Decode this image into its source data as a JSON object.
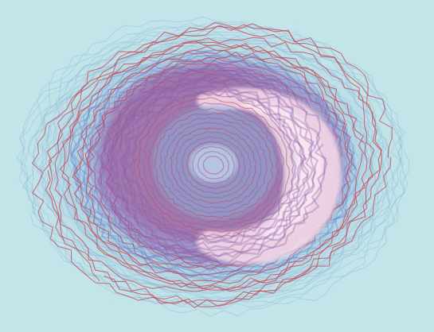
{
  "artwork": {
    "subject": "spiral-drawing",
    "colors": {
      "background": "#bfe4e8",
      "outer_wash": "#a9cfe2",
      "blue_stroke": "#7fb0d8",
      "deep_blue": "#5a6fc4",
      "violet": "#8a4fa0",
      "magenta": "#a0507f",
      "red_line": "#c23a4a",
      "pink_highlight": "#f3d6e6",
      "white_highlight": "#fbeef6"
    }
  }
}
